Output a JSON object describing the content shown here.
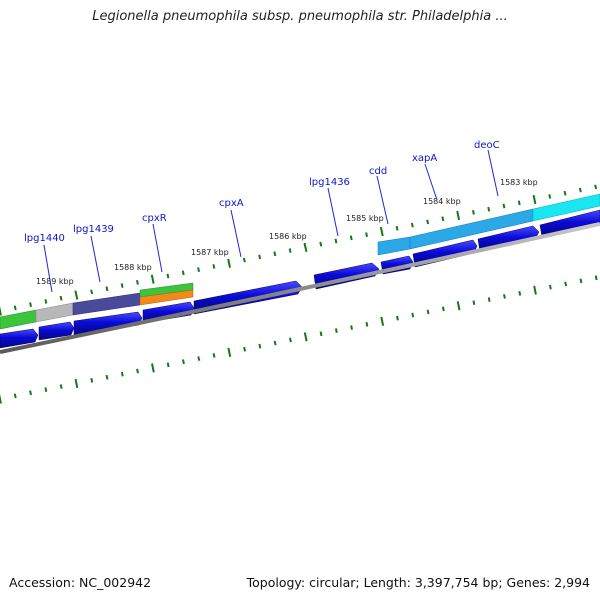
{
  "title": "Legionella pneumophila subsp. pneumophila str. Philadelphia ...",
  "footer": {
    "accession": "Accession: NC_002942",
    "summary": "Topology: circular; Length: 3,397,754 bp; Genes: 2,994"
  },
  "gene_labels": [
    "lpg1440",
    "lpg1439",
    "cpxR",
    "cpxA",
    "lpg1436",
    "cdd",
    "xapA",
    "deoC"
  ],
  "scale_labels": [
    "1589 kbp",
    "1588 kbp",
    "1587 kbp",
    "1586 kbp",
    "1585 kbp",
    "1584 kbp",
    "1583 kbp"
  ],
  "colors": {
    "forward_gene": "#0a0ad8",
    "backbone": "#8a8a8a",
    "tick": "#137a13",
    "label_line": "#1c28d4",
    "label_text": "#0b16c8",
    "green_feature": "#3cc43c",
    "gray_feature": "#b8b8b8",
    "slate_feature": "#4a4a9a",
    "orange_feature": "#f08a1a",
    "sky_feature": "#2aa8e8",
    "cyan_feature": "#19e6f0"
  }
}
